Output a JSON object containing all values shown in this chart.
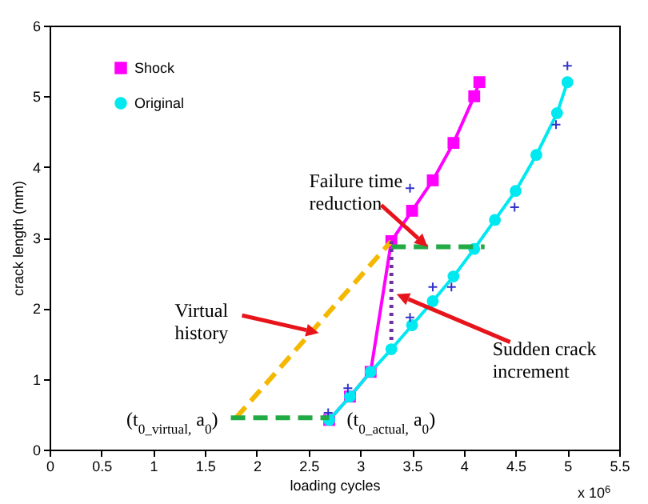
{
  "chart_data": {
    "type": "line",
    "xlabel": "loading cycles",
    "ylabel": "crack length (mm)",
    "xlim": [
      0,
      5.5
    ],
    "xticks": [
      0,
      0.5,
      1,
      1.5,
      2,
      2.5,
      3,
      3.5,
      4,
      4.5,
      5,
      5.5
    ],
    "ylim": [
      0,
      6
    ],
    "yticks": [
      0,
      1,
      2,
      3,
      4,
      5,
      6
    ],
    "grid": false,
    "legend": "top left",
    "series": [
      {
        "name": "Shock",
        "type": "line",
        "color": "#ff00ff",
        "marker": "square",
        "x": [
          2.7,
          2.9,
          3.1,
          3.3,
          3.5,
          3.7,
          3.9,
          4.1,
          4.15
        ],
        "values": [
          0.42,
          0.75,
          1.1,
          2.95,
          3.38,
          3.81,
          4.34,
          5.0,
          5.2
        ]
      },
      {
        "name": "Original",
        "type": "line",
        "color": "#00e8f0",
        "marker": "circle",
        "x": [
          2.7,
          2.9,
          3.1,
          3.3,
          3.5,
          3.7,
          3.9,
          4.1,
          4.3,
          4.5,
          4.7,
          4.9,
          5.0
        ],
        "values": [
          0.42,
          0.75,
          1.1,
          1.42,
          1.76,
          2.1,
          2.45,
          2.84,
          3.25,
          3.66,
          4.17,
          4.76,
          5.2
        ]
      },
      {
        "type": "scatter",
        "color": "#3333cc",
        "marker": "cross",
        "x": [
          2.69,
          2.88,
          3.48,
          3.7,
          3.88,
          3.48,
          4.49,
          4.89,
          5.0
        ],
        "values": [
          0.52,
          0.87,
          1.87,
          2.3,
          2.3,
          3.7,
          3.43,
          4.6,
          5.43
        ]
      },
      {
        "type": "line",
        "color": "#f5b800",
        "line_style": "dashed",
        "marker": "none",
        "x": [
          1.8,
          3.3
        ],
        "values": [
          0.45,
          2.95
        ]
      },
      {
        "type": "line",
        "color": "#22aa44",
        "line_style": "dashed",
        "marker": "none",
        "x": [
          1.75,
          2.7
        ],
        "values": [
          0.45,
          0.45
        ]
      },
      {
        "type": "line",
        "color": "#22aa44",
        "line_style": "dashed",
        "marker": "none",
        "x": [
          3.3,
          4.2
        ],
        "values": [
          2.87,
          2.87
        ]
      },
      {
        "type": "line",
        "color": "#7030a0",
        "line_style": "dotted",
        "marker": "none",
        "x": [
          3.3,
          3.3
        ],
        "values": [
          1.55,
          2.95
        ]
      }
    ],
    "annotations": [
      {
        "text": "Failure time reduction",
        "x": 3.65,
        "y": 2.87
      },
      {
        "text": "Virtual history",
        "x": 2.6,
        "y": 1.65
      },
      {
        "text": "Sudden crack increment",
        "x": 3.35,
        "y": 2.2
      },
      {
        "text": "(t$_{0_virtual,}$ a$_{0}$)",
        "x": 1.75,
        "y": 0.45
      },
      {
        "text": "(t$_{0_actual,}$ a$_{0}$)",
        "x": 2.7,
        "y": 0.45
      },
      "x 10$^{6}$"
    ]
  }
}
